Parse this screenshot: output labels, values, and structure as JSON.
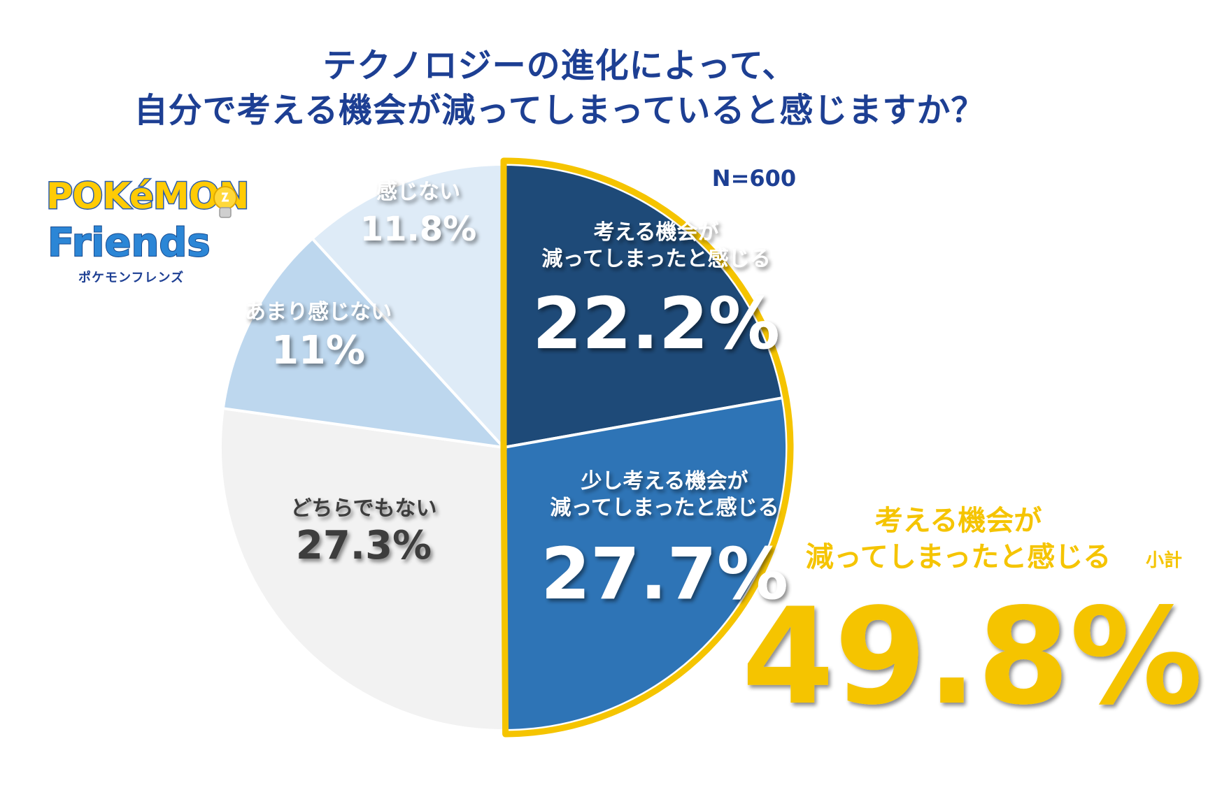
{
  "title_line1": "テクノロジーの進化によって、",
  "title_line2": "自分で考える機会が減ってしまっていると感じますか？",
  "sample_size": "N=600",
  "logo": {
    "wordmark": "POKéMON",
    "product": "Friends",
    "kana": "ポケモンフレンズ"
  },
  "chart_data": {
    "type": "pie",
    "slices": [
      {
        "line1": "考える機会が",
        "line2": "減ってしまったと感じる",
        "value": 22.2,
        "label": "22.2%",
        "color": "#1e4a78",
        "text_color": "#ffffff"
      },
      {
        "line1": "少し考える機会が",
        "line2": "減ってしまったと感じる",
        "value": 27.7,
        "label": "27.7%",
        "color": "#2e74b6",
        "text_color": "#ffffff"
      },
      {
        "line1": "どちらでもない",
        "line2": "",
        "value": 27.3,
        "label": "27.3%",
        "color": "#f2f2f2",
        "text_color": "#3c3c3c"
      },
      {
        "line1": "あまり感じない",
        "line2": "",
        "value": 11,
        "label": "11%",
        "color": "#bdd7ee",
        "text_color": "#ffffff"
      },
      {
        "line1": "感じない",
        "line2": "",
        "value": 11.8,
        "label": "11.8%",
        "color": "#deebf7",
        "text_color": "#ffffff"
      }
    ],
    "highlight_color": "#f5c400"
  },
  "subtotal": {
    "line1": "考える機会が",
    "line2": "減ってしまったと感じる",
    "suffix": "小計",
    "value": "49.8%",
    "color": "#f5c400"
  }
}
